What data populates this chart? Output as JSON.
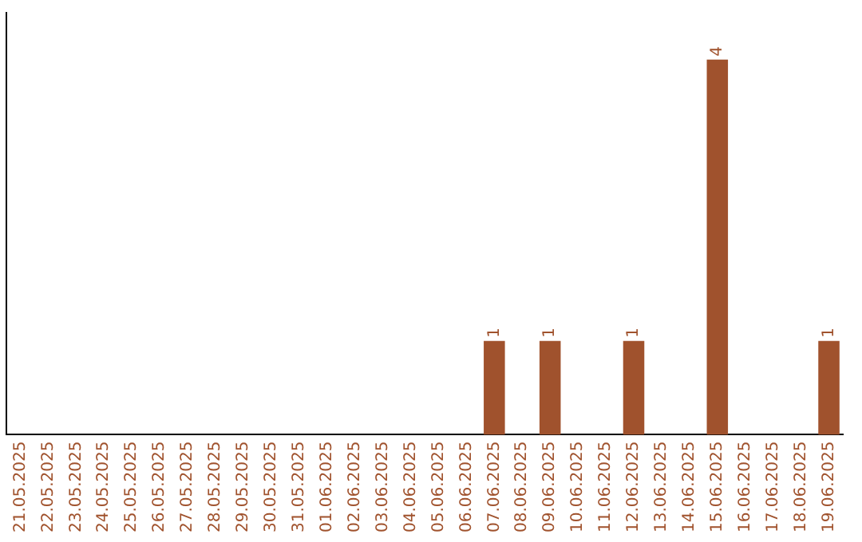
{
  "chart_data": {
    "type": "bar",
    "categories": [
      "21.05.2025",
      "22.05.2025",
      "23.05.2025",
      "24.05.2025",
      "25.05.2025",
      "26.05.2025",
      "27.05.2025",
      "28.05.2025",
      "29.05.2025",
      "30.05.2025",
      "31.05.2025",
      "01.06.2025",
      "02.06.2025",
      "03.06.2025",
      "04.06.2025",
      "05.06.2025",
      "06.06.2025",
      "07.06.2025",
      "08.06.2025",
      "09.06.2025",
      "10.06.2025",
      "11.06.2025",
      "12.06.2025",
      "13.06.2025",
      "14.06.2025",
      "15.06.2025",
      "16.06.2025",
      "17.06.2025",
      "18.06.2025",
      "19.06.2025"
    ],
    "values": [
      null,
      null,
      null,
      null,
      null,
      null,
      null,
      null,
      null,
      null,
      null,
      null,
      null,
      null,
      null,
      null,
      null,
      1,
      null,
      1,
      null,
      null,
      1,
      null,
      null,
      4,
      null,
      null,
      null,
      1
    ],
    "data_labels": true,
    "color": "#a0522d",
    "tick_labels": "x",
    "grid": false,
    "legend": false
  }
}
